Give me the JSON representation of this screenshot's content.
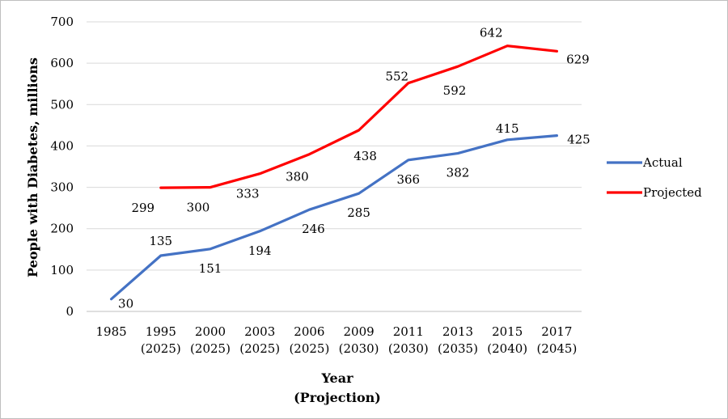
{
  "chart_data": {
    "type": "line",
    "xlabel": [
      "Year",
      "(Projection)"
    ],
    "ylabel": "People with Diabetes, millions",
    "ylim": [
      0,
      700
    ],
    "yticks": [
      0,
      100,
      200,
      300,
      400,
      500,
      600,
      700
    ],
    "grid": true,
    "legend_position": "right",
    "categories": [
      [
        "1985"
      ],
      [
        "1995",
        "(2025)"
      ],
      [
        "2000",
        "(2025)"
      ],
      [
        "2003",
        "(2025)"
      ],
      [
        "2006",
        "(2025)"
      ],
      [
        "2009",
        "(2030)"
      ],
      [
        "2011",
        "(2030)"
      ],
      [
        "2013",
        "(2035)"
      ],
      [
        "2015",
        "(2040)"
      ],
      [
        "2017",
        "(2045)"
      ]
    ],
    "series": [
      {
        "name": "Actual",
        "color": "#4472C4",
        "values": [
          30,
          135,
          151,
          194,
          246,
          285,
          366,
          382,
          415,
          425
        ]
      },
      {
        "name": "Projected",
        "color": "#FF0000",
        "values": [
          null,
          299,
          300,
          333,
          380,
          438,
          552,
          592,
          642,
          629
        ]
      }
    ]
  }
}
